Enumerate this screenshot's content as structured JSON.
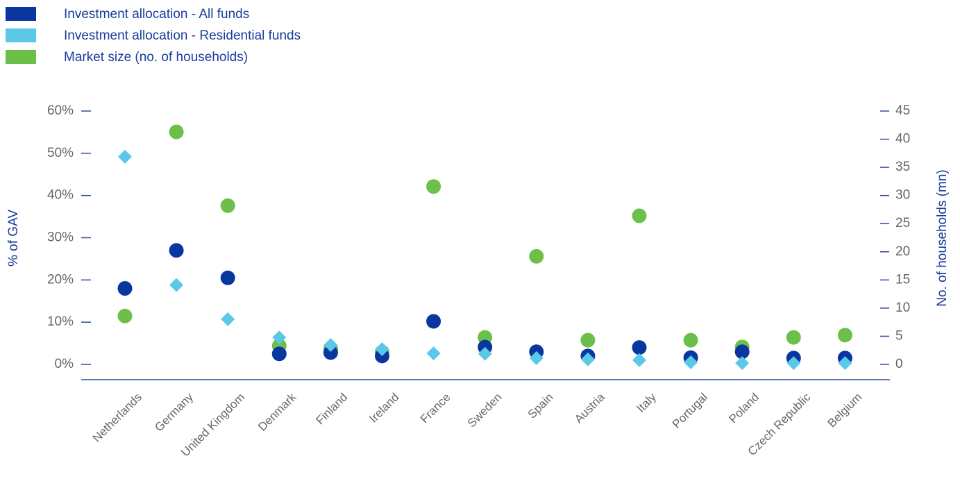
{
  "chart_data": {
    "type": "scatter",
    "categories": [
      "Netherlands",
      "Germany",
      "United Kingdom",
      "Denmark",
      "Finland",
      "Ireland",
      "France",
      "Sweden",
      "Spain",
      "Austria",
      "Italy",
      "Portugal",
      "Poland",
      "Czech Republic",
      "Belgium"
    ],
    "series": [
      {
        "name": "Investment allocation - All funds",
        "color": "#0a36a0",
        "marker": "circle",
        "values": [
          18,
          27,
          20.5,
          2.5,
          2.8,
          2,
          10.2,
          4.1,
          3,
          2,
          4,
          1.6,
          3,
          1.5,
          1.5
        ]
      },
      {
        "name": "Investment allocation - Residential funds",
        "color": "#5bc8e8",
        "marker": "diamond",
        "values": [
          49.2,
          18.8,
          10.7,
          6.4,
          4.6,
          3.6,
          2.6,
          2.5,
          1.5,
          1.2,
          1,
          0.5,
          0.3,
          0.3,
          0.3
        ]
      },
      {
        "name": "Market size (no. of households)",
        "color": "#6cc04a",
        "marker": "circle",
        "axis": "y2",
        "values": [
          8.6,
          41.3,
          28.2,
          3.3,
          2.8,
          2.2,
          31.6,
          4.8,
          19.2,
          4.3,
          26.4,
          4.3,
          3.1,
          4.8,
          5.2
        ]
      }
    ],
    "ylabel": "% of GAV",
    "y2label": "No. of households (mn)",
    "ylim": [
      0,
      60
    ],
    "yticks": [
      {
        "value": 0,
        "label": "0%"
      },
      {
        "value": 10,
        "label": "10%"
      },
      {
        "value": 20,
        "label": "20%"
      },
      {
        "value": 30,
        "label": "30%"
      },
      {
        "value": 40,
        "label": "40%"
      },
      {
        "value": 50,
        "label": "50%"
      },
      {
        "value": 60,
        "label": "60%"
      }
    ],
    "y2lim": [
      0,
      45
    ],
    "y2ticks": [
      0,
      5,
      10,
      15,
      20,
      25,
      30,
      35,
      40,
      45
    ],
    "legend": "top-left"
  }
}
